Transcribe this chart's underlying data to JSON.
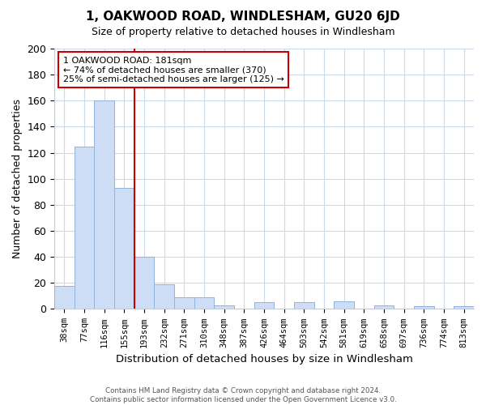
{
  "title": "1, OAKWOOD ROAD, WINDLESHAM, GU20 6JD",
  "subtitle": "Size of property relative to detached houses in Windlesham",
  "xlabel": "Distribution of detached houses by size in Windlesham",
  "ylabel": "Number of detached properties",
  "bar_labels": [
    "38sqm",
    "77sqm",
    "116sqm",
    "155sqm",
    "193sqm",
    "232sqm",
    "271sqm",
    "310sqm",
    "348sqm",
    "387sqm",
    "426sqm",
    "464sqm",
    "503sqm",
    "542sqm",
    "581sqm",
    "619sqm",
    "658sqm",
    "697sqm",
    "736sqm",
    "774sqm",
    "813sqm"
  ],
  "bar_values": [
    18,
    125,
    160,
    93,
    40,
    19,
    9,
    9,
    3,
    0,
    5,
    0,
    5,
    0,
    6,
    0,
    3,
    0,
    2,
    0,
    2
  ],
  "bar_color": "#ccddf5",
  "bar_edge_color": "#92b4d8",
  "vline_x": 3.5,
  "vline_color": "#cc0000",
  "ylim": [
    0,
    200
  ],
  "yticks": [
    0,
    20,
    40,
    60,
    80,
    100,
    120,
    140,
    160,
    180,
    200
  ],
  "annotation_title": "1 OAKWOOD ROAD: 181sqm",
  "annotation_line1": "← 74% of detached houses are smaller (370)",
  "annotation_line2": "25% of semi-detached houses are larger (125) →",
  "annotation_box_color": "#ffffff",
  "annotation_box_edge": "#cc0000",
  "footer_line1": "Contains HM Land Registry data © Crown copyright and database right 2024.",
  "footer_line2": "Contains public sector information licensed under the Open Government Licence v3.0.",
  "background_color": "#ffffff",
  "grid_color": "#ccd9e8"
}
